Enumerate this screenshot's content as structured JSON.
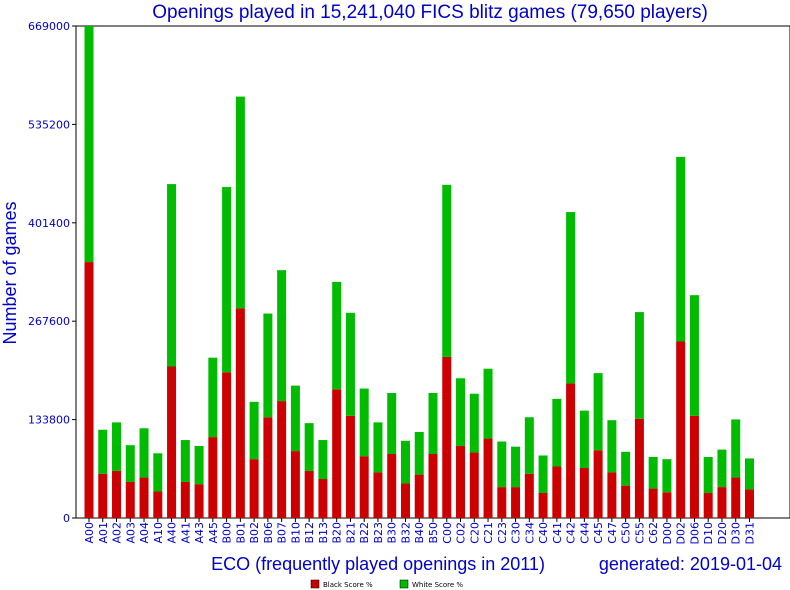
{
  "chart_data": {
    "type": "bar",
    "stacked": true,
    "title": "Openings played in 15,241,040 FICS blitz games (79,650 players)",
    "xlabel": "ECO (frequently played openings in 2011)",
    "ylabel": "Number of games",
    "generated": "generated: 2019-01-04",
    "ylim": [
      0,
      669000
    ],
    "yticks": [
      0,
      133800,
      267600,
      401400,
      535200,
      669000
    ],
    "grid": false,
    "legend_position": "bottom-center",
    "categories": [
      "A00",
      "A01",
      "A02",
      "A03",
      "A04",
      "A10",
      "A40",
      "A41",
      "A43",
      "A45",
      "B00",
      "B01",
      "B02",
      "B06",
      "B07",
      "B10",
      "B12",
      "B13",
      "B20",
      "B21",
      "B22",
      "B23",
      "B30",
      "B32",
      "B40",
      "B50",
      "C00",
      "C02",
      "C20",
      "C21",
      "C23",
      "C30",
      "C34",
      "C40",
      "C41",
      "C42",
      "C44",
      "C45",
      "C47",
      "C50",
      "C55",
      "C62",
      "D00",
      "D02",
      "D06",
      "D10",
      "D20",
      "D30",
      "D31"
    ],
    "series": [
      {
        "name": "Black Score %",
        "color": "#cc0000",
        "values": [
          348000,
          60000,
          64000,
          49000,
          55000,
          36000,
          206000,
          49000,
          46000,
          110000,
          198000,
          285000,
          80000,
          137000,
          159000,
          91000,
          64000,
          53000,
          175000,
          139000,
          84000,
          62000,
          87000,
          47000,
          59000,
          87000,
          219000,
          98000,
          89000,
          108000,
          42000,
          42000,
          60000,
          34000,
          70000,
          183000,
          68000,
          92000,
          62000,
          44000,
          135000,
          40000,
          35000,
          240000,
          139000,
          34000,
          42000,
          55000,
          39000
        ]
      },
      {
        "name": "White Score %",
        "color": "#00bb00",
        "values": [
          321000,
          60000,
          66000,
          50000,
          67000,
          52000,
          248000,
          57000,
          52000,
          108000,
          252000,
          288000,
          78000,
          141000,
          178000,
          89000,
          65000,
          53000,
          146000,
          140000,
          92000,
          68000,
          83000,
          58000,
          58000,
          83000,
          234000,
          92000,
          80000,
          95000,
          62000,
          55000,
          77000,
          51000,
          92000,
          233000,
          78000,
          105000,
          71000,
          46000,
          145000,
          43000,
          45000,
          251000,
          164000,
          49000,
          51000,
          79000,
          42000
        ]
      }
    ]
  }
}
